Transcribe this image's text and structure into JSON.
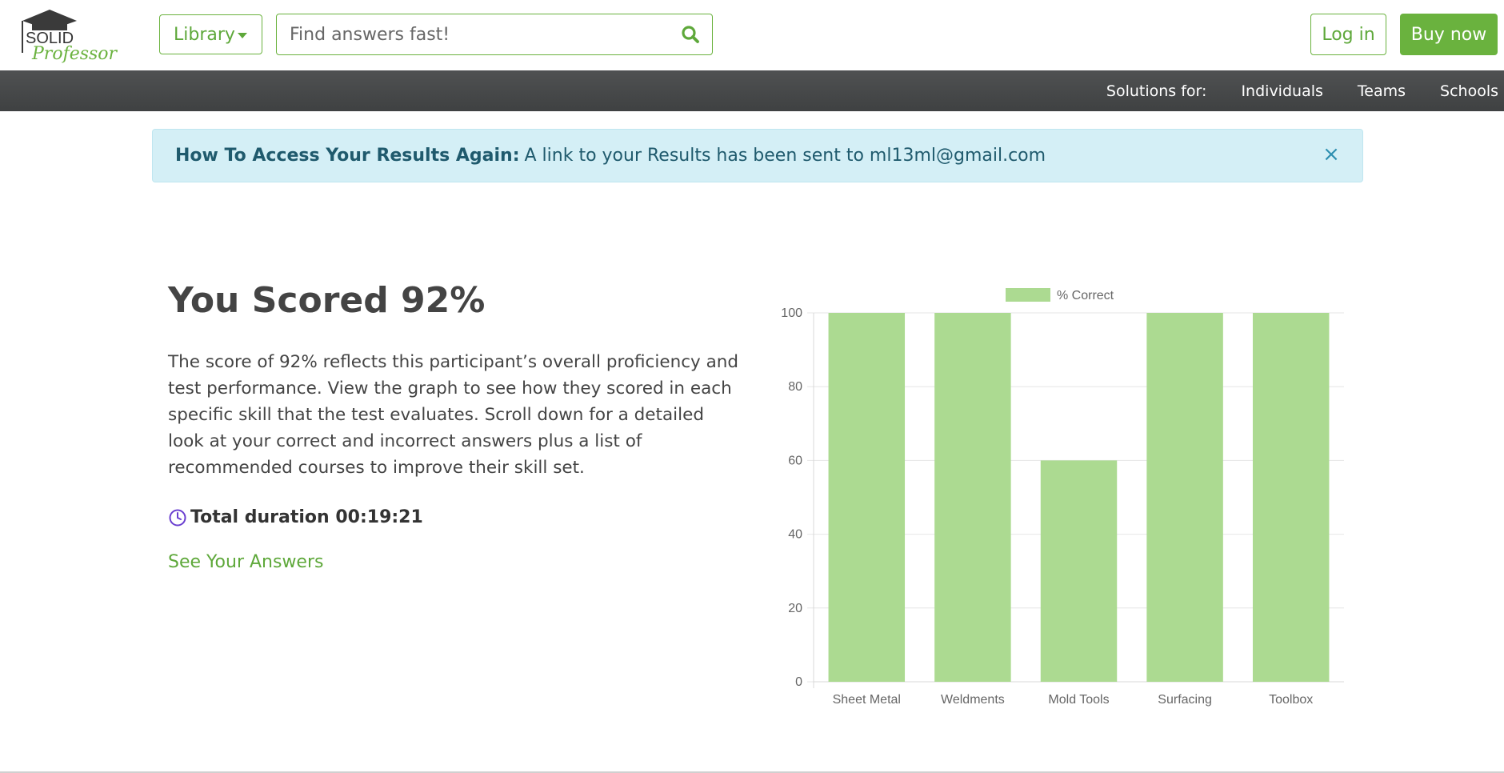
{
  "header": {
    "logo": {
      "top": "SOLID",
      "bottom": "Professor"
    },
    "library_label": "Library",
    "search_placeholder": "Find answers fast!",
    "login_label": "Log in",
    "buy_label": "Buy now"
  },
  "nav": {
    "label": "Solutions for:",
    "items": [
      "Individuals",
      "Teams",
      "Schools"
    ]
  },
  "alert": {
    "title": "How To Access Your Results Again:",
    "message": "A link to your Results has been sent to ml13ml@gmail.com",
    "close": "×"
  },
  "main": {
    "score_title": "You Scored 92%",
    "description": "The score of 92% reflects this participant’s overall proficiency and test performance. View the graph to see how they scored in each specific skill that the test evaluates. Scroll down for a detailed look at your correct and incorrect answers plus a list of recommended courses to improve their skill set.",
    "duration": "Total duration 00:19:21",
    "answers_link": "See Your Answers"
  },
  "colors": {
    "accent": "#6ab23e",
    "bar": "#acda91",
    "alert_bg": "#d4eff6",
    "clock": "#6a3fd0"
  },
  "chart_data": {
    "type": "bar",
    "categories": [
      "Sheet Metal",
      "Weldments",
      "Mold Tools",
      "Surfacing",
      "Toolbox"
    ],
    "series": [
      {
        "name": "% Correct",
        "values": [
          100,
          100,
          60,
          100,
          100
        ]
      }
    ],
    "ylim": [
      0,
      100
    ],
    "yticks": [
      0,
      20,
      40,
      60,
      80,
      100
    ],
    "grid": true,
    "legend": "top"
  }
}
